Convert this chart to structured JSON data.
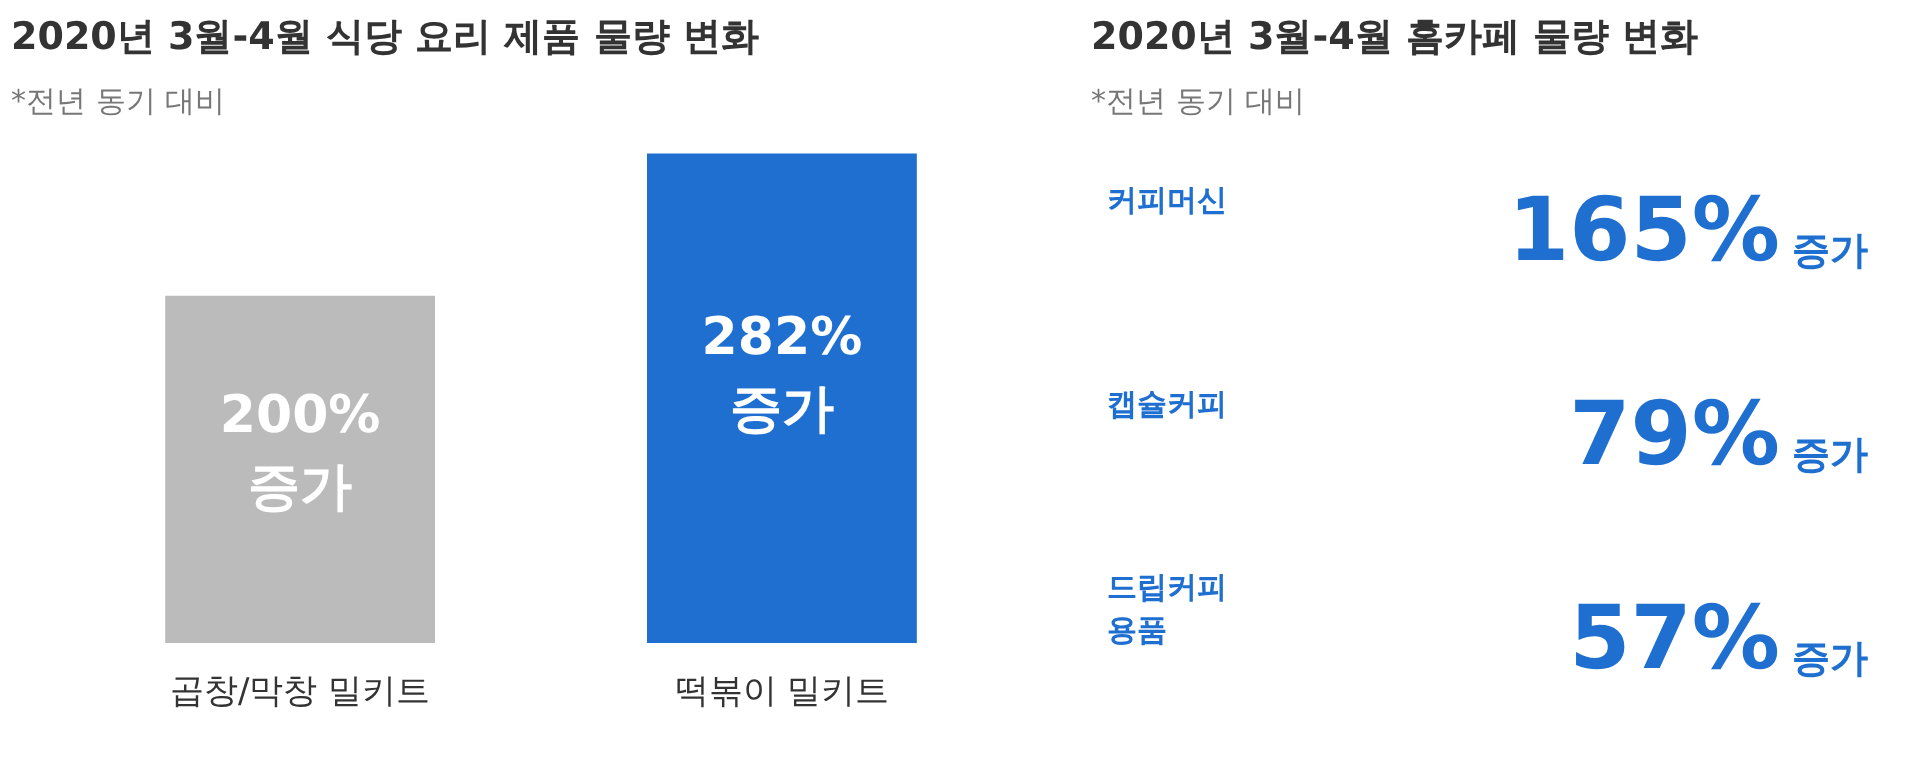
{
  "chart_data": [
    {
      "type": "bar",
      "title": "2020년 3월-4월 식당 요리 제품 물량 변화",
      "subtitle": "*전년 동기 대비",
      "categories": [
        "곱창/막창 밀키트",
        "떡볶이 밀키트"
      ],
      "values": [
        200,
        282
      ],
      "colors": [
        "#bbbbbb",
        "#1f6fd1"
      ],
      "value_labels": [
        "200% 증가",
        "282% 증가"
      ]
    },
    {
      "type": "other",
      "title": "2020년 3월-4월 홈카페 물량 변화",
      "subtitle": "*전년 동기 대비",
      "categories": [
        "커피머신",
        "캡슐커피",
        "드립커피 용품"
      ],
      "values": [
        165,
        79,
        57
      ],
      "value_labels": [
        "165%",
        "79%",
        "57%"
      ],
      "annotations": [
        "증가",
        "증가",
        "증가"
      ],
      "color": "#1f6fd1"
    }
  ]
}
